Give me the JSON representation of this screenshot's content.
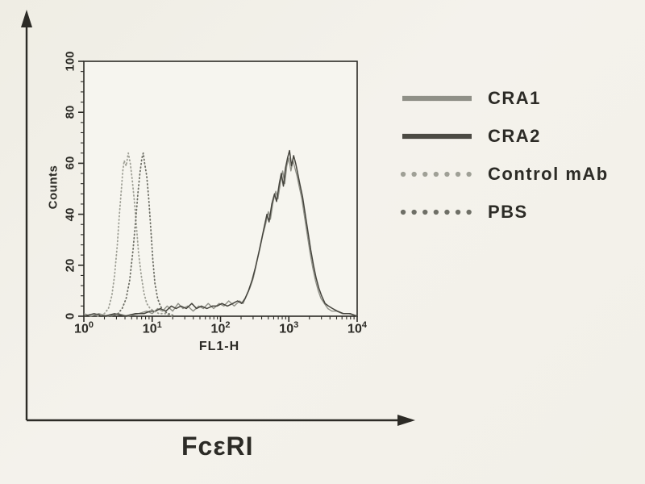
{
  "figure": {
    "background_color": "#f2f0e8",
    "axis_color": "#2c2b26",
    "x_axis_arrow_label": "FcεRI",
    "legend": {
      "position": "right",
      "items": [
        {
          "label": "CRA1",
          "style": "solid",
          "color": "#8f9087"
        },
        {
          "label": "CRA2",
          "style": "solid",
          "color": "#4b4a43"
        },
        {
          "label": "Control mAb",
          "style": "dotted",
          "color": "#9fa096"
        },
        {
          "label": "PBS",
          "style": "dotted",
          "color": "#6e6f66"
        }
      ]
    }
  },
  "chart_data": {
    "type": "line",
    "subtype": "flow-cytometry-histogram",
    "title": "",
    "xlabel": "FL1-H",
    "ylabel": "Counts",
    "x_scale": "log10",
    "xlim_log10": [
      0,
      4
    ],
    "ylim": [
      0,
      100
    ],
    "grid": false,
    "x_tick_base": "10",
    "x_tick_exponents": [
      "0",
      "1",
      "2",
      "3",
      "4"
    ],
    "y_ticks": [
      "0",
      "20",
      "40",
      "60",
      "80",
      "100"
    ],
    "y_major_step": 20,
    "y_minor_step": 4,
    "series": [
      {
        "name": "CRA1",
        "style": "solid",
        "color": "#8f9087",
        "width": 1.4,
        "points_log10x_counts": [
          [
            0.0,
            1
          ],
          [
            0.1,
            0
          ],
          [
            0.22,
            1
          ],
          [
            0.35,
            0
          ],
          [
            0.5,
            1
          ],
          [
            0.65,
            0
          ],
          [
            0.8,
            1
          ],
          [
            0.92,
            2
          ],
          [
            1.0,
            1
          ],
          [
            1.08,
            3
          ],
          [
            1.15,
            2
          ],
          [
            1.22,
            4
          ],
          [
            1.3,
            2
          ],
          [
            1.38,
            5
          ],
          [
            1.45,
            3
          ],
          [
            1.52,
            4
          ],
          [
            1.6,
            2
          ],
          [
            1.68,
            4
          ],
          [
            1.75,
            3
          ],
          [
            1.82,
            5
          ],
          [
            1.9,
            3
          ],
          [
            1.98,
            5
          ],
          [
            2.05,
            4
          ],
          [
            2.12,
            6
          ],
          [
            2.2,
            4
          ],
          [
            2.28,
            6
          ],
          [
            2.33,
            5
          ],
          [
            2.38,
            8
          ],
          [
            2.43,
            11
          ],
          [
            2.48,
            15
          ],
          [
            2.53,
            21
          ],
          [
            2.58,
            27
          ],
          [
            2.62,
            32
          ],
          [
            2.66,
            36
          ],
          [
            2.7,
            41
          ],
          [
            2.73,
            38
          ],
          [
            2.77,
            45
          ],
          [
            2.81,
            49
          ],
          [
            2.84,
            46
          ],
          [
            2.88,
            53
          ],
          [
            2.91,
            57
          ],
          [
            2.94,
            52
          ],
          [
            2.97,
            59
          ],
          [
            3.0,
            62
          ],
          [
            3.03,
            57
          ],
          [
            3.06,
            61
          ],
          [
            3.09,
            58
          ],
          [
            3.12,
            55
          ],
          [
            3.15,
            51
          ],
          [
            3.19,
            46
          ],
          [
            3.23,
            39
          ],
          [
            3.27,
            32
          ],
          [
            3.31,
            25
          ],
          [
            3.35,
            19
          ],
          [
            3.39,
            14
          ],
          [
            3.43,
            10
          ],
          [
            3.47,
            7
          ],
          [
            3.52,
            5
          ],
          [
            3.57,
            3
          ],
          [
            3.63,
            2
          ],
          [
            3.7,
            2
          ],
          [
            3.78,
            1
          ],
          [
            3.88,
            1
          ],
          [
            4.0,
            0
          ]
        ]
      },
      {
        "name": "CRA2",
        "style": "solid",
        "color": "#45443d",
        "width": 1.5,
        "points_log10x_counts": [
          [
            0.0,
            0
          ],
          [
            0.15,
            1
          ],
          [
            0.3,
            0
          ],
          [
            0.45,
            1
          ],
          [
            0.6,
            0
          ],
          [
            0.75,
            1
          ],
          [
            0.88,
            1
          ],
          [
            0.97,
            2
          ],
          [
            1.05,
            2
          ],
          [
            1.12,
            3
          ],
          [
            1.2,
            2
          ],
          [
            1.28,
            4
          ],
          [
            1.35,
            3
          ],
          [
            1.42,
            4
          ],
          [
            1.5,
            3
          ],
          [
            1.58,
            5
          ],
          [
            1.65,
            3
          ],
          [
            1.72,
            4
          ],
          [
            1.8,
            3
          ],
          [
            1.88,
            4
          ],
          [
            1.95,
            4
          ],
          [
            2.02,
            5
          ],
          [
            2.1,
            4
          ],
          [
            2.18,
            5
          ],
          [
            2.25,
            6
          ],
          [
            2.31,
            5
          ],
          [
            2.36,
            7
          ],
          [
            2.41,
            10
          ],
          [
            2.46,
            14
          ],
          [
            2.51,
            19
          ],
          [
            2.56,
            25
          ],
          [
            2.6,
            30
          ],
          [
            2.64,
            35
          ],
          [
            2.68,
            40
          ],
          [
            2.71,
            37
          ],
          [
            2.75,
            44
          ],
          [
            2.79,
            48
          ],
          [
            2.82,
            45
          ],
          [
            2.86,
            52
          ],
          [
            2.89,
            56
          ],
          [
            2.92,
            51
          ],
          [
            2.95,
            58
          ],
          [
            2.98,
            62
          ],
          [
            3.01,
            65
          ],
          [
            3.04,
            59
          ],
          [
            3.07,
            63
          ],
          [
            3.1,
            60
          ],
          [
            3.13,
            56
          ],
          [
            3.16,
            52
          ],
          [
            3.2,
            47
          ],
          [
            3.24,
            40
          ],
          [
            3.28,
            33
          ],
          [
            3.32,
            26
          ],
          [
            3.36,
            20
          ],
          [
            3.4,
            15
          ],
          [
            3.44,
            11
          ],
          [
            3.48,
            8
          ],
          [
            3.53,
            5
          ],
          [
            3.58,
            4
          ],
          [
            3.64,
            3
          ],
          [
            3.71,
            2
          ],
          [
            3.8,
            1
          ],
          [
            3.9,
            1
          ],
          [
            4.0,
            0
          ]
        ]
      },
      {
        "name": "Control mAb",
        "style": "dotted",
        "color": "#9fa096",
        "width": 1.8,
        "points_log10x_counts": [
          [
            0.2,
            0
          ],
          [
            0.3,
            1
          ],
          [
            0.36,
            3
          ],
          [
            0.41,
            8
          ],
          [
            0.45,
            16
          ],
          [
            0.49,
            28
          ],
          [
            0.52,
            40
          ],
          [
            0.55,
            50
          ],
          [
            0.57,
            57
          ],
          [
            0.59,
            61
          ],
          [
            0.62,
            59
          ],
          [
            0.65,
            64
          ],
          [
            0.68,
            60
          ],
          [
            0.71,
            53
          ],
          [
            0.74,
            45
          ],
          [
            0.77,
            35
          ],
          [
            0.8,
            25
          ],
          [
            0.84,
            16
          ],
          [
            0.88,
            9
          ],
          [
            0.92,
            5
          ],
          [
            0.97,
            3
          ],
          [
            1.03,
            2
          ],
          [
            1.1,
            1
          ],
          [
            1.2,
            1
          ],
          [
            1.3,
            0
          ]
        ]
      },
      {
        "name": "PBS",
        "style": "dotted",
        "color": "#6e6f66",
        "width": 1.8,
        "points_log10x_counts": [
          [
            0.4,
            0
          ],
          [
            0.5,
            1
          ],
          [
            0.56,
            3
          ],
          [
            0.62,
            7
          ],
          [
            0.67,
            14
          ],
          [
            0.72,
            26
          ],
          [
            0.76,
            38
          ],
          [
            0.79,
            48
          ],
          [
            0.82,
            56
          ],
          [
            0.85,
            62
          ],
          [
            0.87,
            64
          ],
          [
            0.89,
            60
          ],
          [
            0.92,
            55
          ],
          [
            0.95,
            46
          ],
          [
            0.98,
            34
          ],
          [
            1.01,
            22
          ],
          [
            1.04,
            13
          ],
          [
            1.08,
            7
          ],
          [
            1.12,
            4
          ],
          [
            1.17,
            2
          ],
          [
            1.24,
            1
          ],
          [
            1.33,
            0
          ]
        ]
      }
    ]
  }
}
